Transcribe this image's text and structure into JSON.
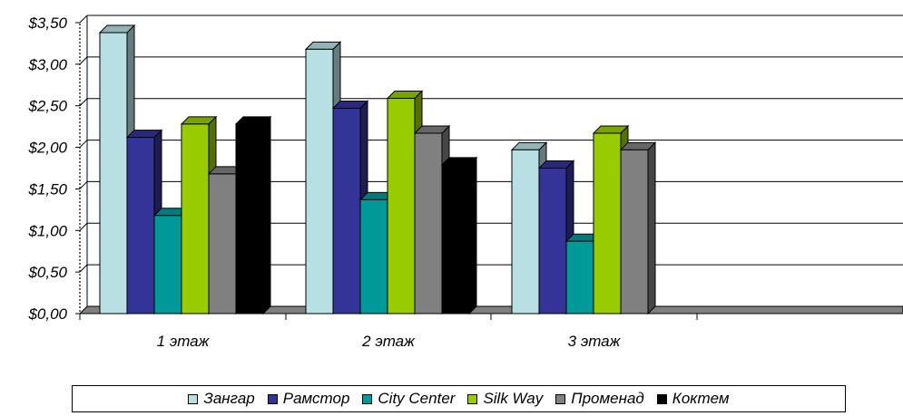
{
  "chart_data": {
    "type": "bar",
    "categories": [
      "1 этаж",
      "2 этаж",
      "3 этаж"
    ],
    "series": [
      {
        "name": "Зангар",
        "color": "#b8e0e4",
        "values": [
          3.38,
          3.18,
          1.97
        ]
      },
      {
        "name": "Рамстор",
        "color": "#343397",
        "values": [
          2.12,
          2.47,
          1.75
        ]
      },
      {
        "name": "City Center",
        "color": "#00999a",
        "values": [
          1.18,
          1.37,
          0.87
        ]
      },
      {
        "name": "Silk Way",
        "color": "#99cc00",
        "values": [
          2.28,
          2.59,
          2.17
        ]
      },
      {
        "name": "Променад",
        "color": "#808080",
        "values": [
          1.68,
          2.17,
          1.97
        ]
      },
      {
        "name": "Коктем",
        "color": "#000000",
        "values": [
          2.28,
          1.79,
          null
        ]
      }
    ],
    "yticks": [
      "$0,00",
      "$0,50",
      "$1,00",
      "$1,50",
      "$2,00",
      "$2,50",
      "$3,00",
      "$3,50"
    ],
    "ylim": [
      0,
      3.5
    ],
    "grid": true,
    "legend_position": "bottom"
  }
}
